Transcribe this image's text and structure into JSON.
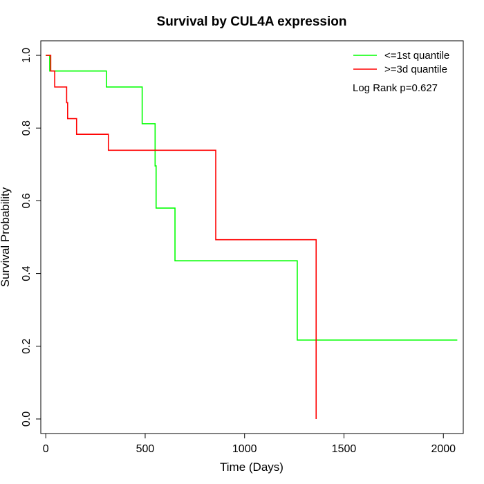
{
  "chart_data": {
    "type": "line",
    "subtype": "step",
    "title": "Survival by CUL4A expression",
    "xlabel": "Time (Days)",
    "ylabel": "Survival Probability",
    "xlim": [
      -25,
      2100
    ],
    "ylim": [
      -0.04,
      1.04
    ],
    "xticks": [
      0,
      500,
      1000,
      1500,
      2000
    ],
    "yticks": [
      0.0,
      0.2,
      0.4,
      0.6,
      0.8,
      1.0
    ],
    "xtick_labels": [
      "0",
      "500",
      "1000",
      "1500",
      "2000"
    ],
    "ytick_labels": [
      "0.0",
      "0.2",
      "0.4",
      "0.6",
      "0.8",
      "1.0"
    ],
    "grid": false,
    "legend_position": "top-right",
    "annotation": "Log Rank p=0.627",
    "series": [
      {
        "name": "<=1st quantile",
        "color": "#00ff00",
        "x": [
          0,
          20,
          305,
          485,
          550,
          555,
          650,
          1265,
          2070
        ],
        "y": [
          1.0,
          0.957,
          0.913,
          0.812,
          0.696,
          0.58,
          0.435,
          0.217,
          0.217
        ]
      },
      {
        "name": ">=3d quantile",
        "color": "#ff0000",
        "x": [
          0,
          25,
          45,
          105,
          110,
          155,
          315,
          855,
          1360
        ],
        "y": [
          1.0,
          0.957,
          0.913,
          0.87,
          0.826,
          0.783,
          0.739,
          0.493,
          0.0
        ]
      }
    ]
  }
}
